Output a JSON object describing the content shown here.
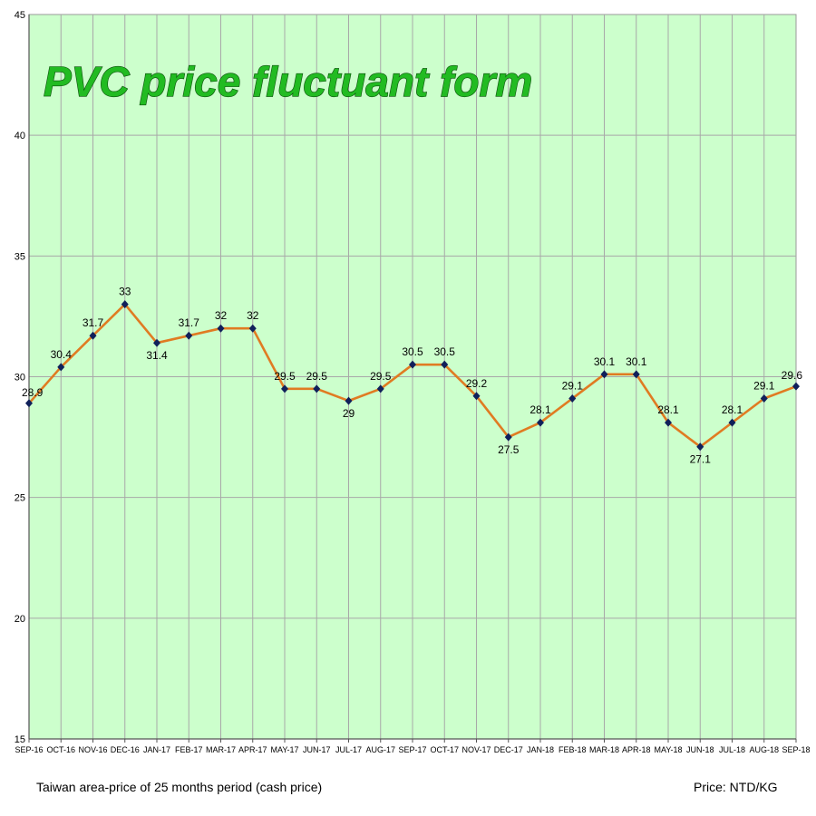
{
  "chart_data": {
    "type": "line",
    "title": "PVC price fluctuant form",
    "categories": [
      "SEP-16",
      "OCT-16",
      "NOV-16",
      "DEC-16",
      "JAN-17",
      "FEB-17",
      "MAR-17",
      "APR-17",
      "MAY-17",
      "JUN-17",
      "JUL-17",
      "AUG-17",
      "SEP-17",
      "OCT-17",
      "NOV-17",
      "DEC-17",
      "JAN-18",
      "FEB-18",
      "MAR-18",
      "APR-18",
      "MAY-18",
      "JUN-18",
      "JUL-18",
      "AUG-18",
      "SEP-18"
    ],
    "series": [
      {
        "values": [
          28.9,
          30.4,
          31.7,
          33,
          31.4,
          31.7,
          32,
          32,
          29.5,
          29.5,
          29,
          29.5,
          30.5,
          30.5,
          29.2,
          27.5,
          28.1,
          29.1,
          30.1,
          30.1,
          28.1,
          27.1,
          28.1,
          29.1,
          29.6
        ],
        "labels": [
          "28.9",
          "30.4",
          "31.7",
          "33",
          "31.4",
          "31.7",
          "32",
          "32",
          "29.5",
          "29.5",
          "29",
          "29.5",
          "30.5",
          "30.5",
          "29.2",
          "27.5",
          "28.1",
          "29.1",
          "30.1",
          "30.1",
          "28.1",
          "27.1",
          "28.1",
          "29.1",
          "29.6"
        ]
      }
    ],
    "ylim": [
      15,
      45
    ],
    "yticks": [
      15,
      20,
      25,
      30,
      35,
      40,
      45
    ],
    "grid": true,
    "xlabel": "",
    "ylabel": "",
    "footnote_left": "Taiwan area-price of 25 months period (cash price)",
    "footnote_right": "Price: NTD/KG",
    "colors": {
      "plot_background": "#ccffcc",
      "line": "#e07b22",
      "marker": "#10205a",
      "grid": "#a8a8a8",
      "title_fill": "#22bb22"
    }
  }
}
